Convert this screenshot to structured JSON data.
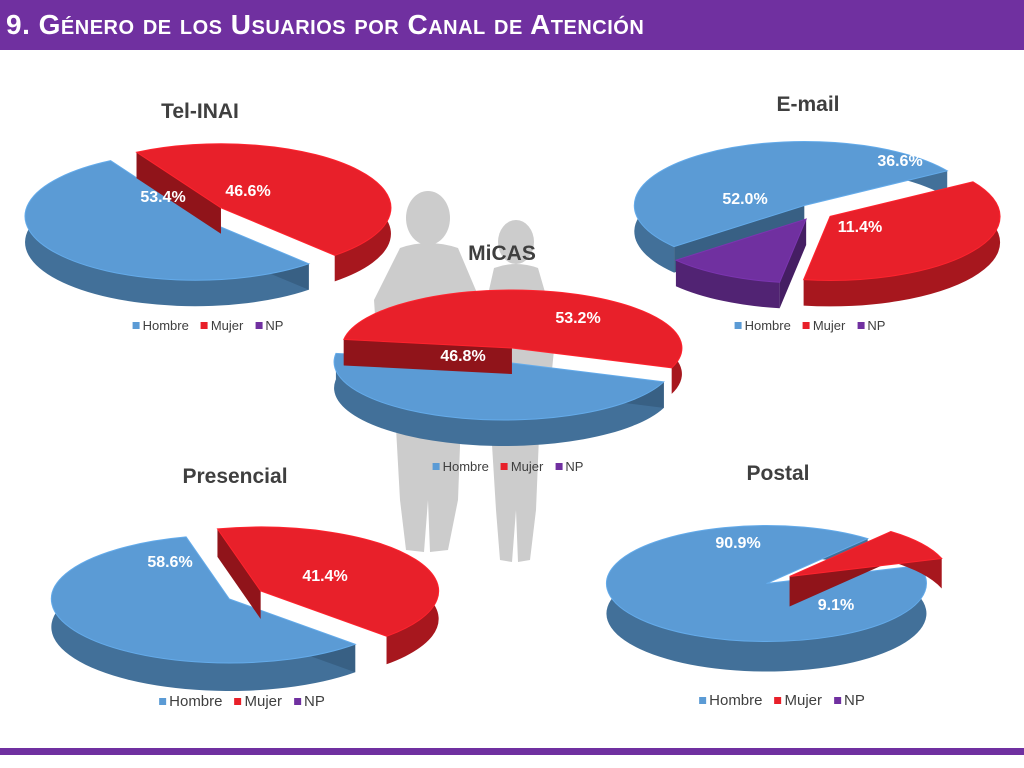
{
  "header": {
    "title": "9. Género de los Usuarios por Canal de Atención"
  },
  "colors": {
    "header_bg": "#7030a0",
    "hombre": "#5b9bd5",
    "mujer": "#e8202a",
    "np": "#7030a0"
  },
  "legend": {
    "items": [
      {
        "label": "Hombre",
        "color": "#5b9bd5"
      },
      {
        "label": "Mujer",
        "color": "#e8202a"
      },
      {
        "label": "NP",
        "color": "#7030a0"
      }
    ]
  },
  "background_icon": "people-silhouette-icon",
  "chart_data": [
    {
      "type": "pie",
      "title": "Tel-INAI",
      "categories": [
        "Hombre",
        "Mujer"
      ],
      "values": [
        53.4,
        46.6
      ],
      "labels": [
        "53.4%",
        "46.6%"
      ],
      "legend": "bottom"
    },
    {
      "type": "pie",
      "title": "E-mail",
      "categories": [
        "Hombre",
        "Mujer",
        "NP"
      ],
      "values": [
        52.0,
        36.6,
        11.4
      ],
      "labels": [
        "52.0%",
        "36.6%",
        "11.4%"
      ],
      "legend": "bottom"
    },
    {
      "type": "pie",
      "title": "MiCAS",
      "categories": [
        "Hombre",
        "Mujer"
      ],
      "values": [
        46.8,
        53.2
      ],
      "labels": [
        "46.8%",
        "53.2%"
      ],
      "legend": "bottom"
    },
    {
      "type": "pie",
      "title": "Presencial",
      "categories": [
        "Hombre",
        "Mujer"
      ],
      "values": [
        58.6,
        41.4
      ],
      "labels": [
        "58.6%",
        "41.4%"
      ],
      "legend": "bottom"
    },
    {
      "type": "pie",
      "title": "Postal",
      "categories": [
        "Hombre",
        "Mujer"
      ],
      "values": [
        90.9,
        9.1
      ],
      "labels": [
        "90.9%",
        "9.1%"
      ],
      "legend": "bottom"
    }
  ]
}
